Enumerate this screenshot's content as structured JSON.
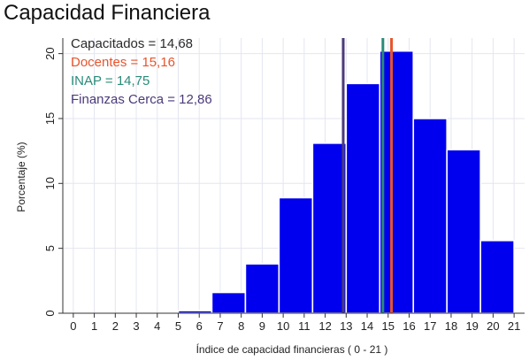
{
  "chart_data": {
    "type": "bar",
    "title": "Capacidad Financiera",
    "xlabel": "Índice de capacidad financieras ( 0 - 21 )",
    "ylabel": "Porcentaje (%)",
    "xlim": [
      -0.5,
      21.5
    ],
    "ylim": [
      0,
      21.2
    ],
    "x_ticks": [
      "0",
      "1",
      "2",
      "3",
      "4",
      "5",
      "6",
      "7",
      "8",
      "9",
      "10",
      "11",
      "12",
      "13",
      "14",
      "15",
      "16",
      "17",
      "18",
      "19",
      "20",
      "21"
    ],
    "y_ticks": [
      "0",
      "5",
      "10",
      "15",
      "20"
    ],
    "bins": [
      {
        "x0": 5,
        "x1": 6.6,
        "value": 0.2
      },
      {
        "x0": 6.6,
        "x1": 8.2,
        "value": 1.6
      },
      {
        "x0": 8.2,
        "x1": 9.8,
        "value": 3.8
      },
      {
        "x0": 9.8,
        "x1": 11.4,
        "value": 8.9
      },
      {
        "x0": 11.4,
        "x1": 13.0,
        "value": 13.1
      },
      {
        "x0": 13.0,
        "x1": 14.6,
        "value": 17.7
      },
      {
        "x0": 14.6,
        "x1": 16.2,
        "value": 20.2
      },
      {
        "x0": 16.2,
        "x1": 17.8,
        "value": 15.0
      },
      {
        "x0": 17.8,
        "x1": 19.4,
        "value": 12.6
      },
      {
        "x0": 19.4,
        "x1": 21.0,
        "value": 5.6
      }
    ],
    "bar_color": "#0000ee",
    "bar_edge_color": "#ffffff",
    "grid": true,
    "legend_position": "top-left",
    "reference_lines": [
      {
        "label": "Capacitados = 14,68",
        "value": 14.68,
        "color": "#2a2a2a",
        "show_line": false
      },
      {
        "label": "Docentes = 15,16",
        "value": 15.16,
        "color": "#e8542c",
        "show_line": true
      },
      {
        "label": "INAP = 14,75",
        "value": 14.75,
        "color": "#2a8a7a",
        "show_line": true
      },
      {
        "label": "Finanzas Cerca = 12,86",
        "value": 12.86,
        "color": "#4b3a7a",
        "show_line": true
      }
    ]
  }
}
